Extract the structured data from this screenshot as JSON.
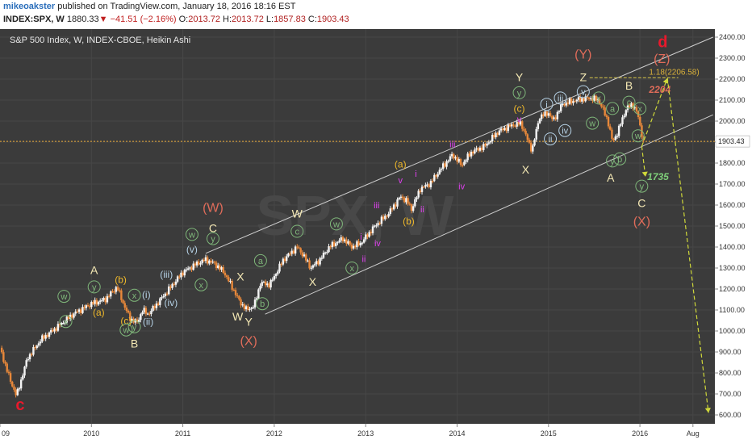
{
  "header": {
    "author": "mikeoakster",
    "published": "published on TradingView.com, January 18, 2016 18:16 EST",
    "symbol": "INDEX:SPX, W",
    "last": "1880.33",
    "change": "−41.51 (−2.16%)",
    "o_label": "O:",
    "o_value": "2013.72",
    "h_label": "H:",
    "h_value": "2013.72",
    "l_label": "L:",
    "l_value": "1857.83",
    "c_label": "C:",
    "c_value": "1903.43"
  },
  "chart_data": {
    "type": "candlestick",
    "title": "S&P 500 Index, W, INDEX-CBOE, Heikin Ashi",
    "watermark": "SPX, W",
    "price_axis": {
      "min": 600,
      "max": 2400,
      "ticks": [
        "2400.00",
        "2300.00",
        "2200.00",
        "2100.00",
        "2000.00",
        "1900.00",
        "1800.00",
        "1700.00",
        "1600.00",
        "1500.00",
        "1400.00",
        "1300.00",
        "1200.00",
        "1100.00",
        "1000.00",
        "900.00",
        "800.00",
        "700.00",
        "600.00"
      ]
    },
    "time_axis": {
      "ticks": [
        "09",
        "2010",
        "2011",
        "2012",
        "2013",
        "2014",
        "2015",
        "2016",
        "Aug"
      ]
    },
    "last_price_label": "1903.43",
    "price_path": [
      [
        2009.0,
        920
      ],
      [
        2009.1,
        780
      ],
      [
        2009.18,
        690
      ],
      [
        2009.3,
        870
      ],
      [
        2009.45,
        960
      ],
      [
        2009.6,
        1010
      ],
      [
        2009.8,
        1080
      ],
      [
        2010.0,
        1130
      ],
      [
        2010.15,
        1150
      ],
      [
        2010.28,
        1210
      ],
      [
        2010.35,
        1130
      ],
      [
        2010.42,
        1060
      ],
      [
        2010.5,
        1040
      ],
      [
        2010.56,
        1100
      ],
      [
        2010.62,
        1080
      ],
      [
        2010.7,
        1120
      ],
      [
        2010.85,
        1200
      ],
      [
        2011.0,
        1280
      ],
      [
        2011.15,
        1320
      ],
      [
        2011.25,
        1340
      ],
      [
        2011.35,
        1320
      ],
      [
        2011.45,
        1280
      ],
      [
        2011.55,
        1200
      ],
      [
        2011.62,
        1140
      ],
      [
        2011.7,
        1100
      ],
      [
        2011.78,
        1120
      ],
      [
        2011.85,
        1230
      ],
      [
        2011.95,
        1220
      ],
      [
        2012.1,
        1340
      ],
      [
        2012.25,
        1400
      ],
      [
        2012.32,
        1360
      ],
      [
        2012.4,
        1300
      ],
      [
        2012.5,
        1340
      ],
      [
        2012.6,
        1400
      ],
      [
        2012.75,
        1440
      ],
      [
        2012.85,
        1400
      ],
      [
        2012.95,
        1420
      ],
      [
        2013.1,
        1500
      ],
      [
        2013.25,
        1560
      ],
      [
        2013.38,
        1640
      ],
      [
        2013.45,
        1620
      ],
      [
        2013.5,
        1580
      ],
      [
        2013.6,
        1680
      ],
      [
        2013.7,
        1700
      ],
      [
        2013.8,
        1760
      ],
      [
        2013.95,
        1840
      ],
      [
        2014.05,
        1790
      ],
      [
        2014.15,
        1850
      ],
      [
        2014.3,
        1880
      ],
      [
        2014.45,
        1950
      ],
      [
        2014.6,
        1980
      ],
      [
        2014.7,
        1990
      ],
      [
        2014.78,
        1900
      ],
      [
        2014.82,
        1860
      ],
      [
        2014.9,
        2020
      ],
      [
        2015.0,
        2040
      ],
      [
        2015.05,
        2000
      ],
      [
        2015.15,
        2080
      ],
      [
        2015.3,
        2100
      ],
      [
        2015.45,
        2110
      ],
      [
        2015.55,
        2100
      ],
      [
        2015.65,
        2000
      ],
      [
        2015.7,
        1900
      ],
      [
        2015.75,
        1940
      ],
      [
        2015.85,
        2060
      ],
      [
        2015.92,
        2080
      ],
      [
        2015.97,
        2040
      ],
      [
        2016.04,
        1900
      ]
    ],
    "channel": [
      {
        "name": "upper",
        "points": [
          [
            2011.25,
            1370
          ],
          [
            2016.8,
            2400
          ]
        ]
      },
      {
        "name": "lower",
        "points": [
          [
            2011.9,
            1080
          ],
          [
            2016.8,
            2030
          ]
        ]
      }
    ],
    "projections": [
      {
        "points": [
          [
            2016.02,
            1880
          ],
          [
            2016.3,
            2204
          ]
        ]
      },
      {
        "points": [
          [
            2016.02,
            1880
          ],
          [
            2016.06,
            1735
          ]
        ]
      },
      {
        "points": [
          [
            2016.3,
            2206
          ],
          [
            2016.75,
            610
          ]
        ]
      }
    ],
    "fib_level": {
      "label": "1.18(2206.58)",
      "value": 2206.58
    },
    "targets": [
      {
        "label": "2204",
        "value": 2204
      },
      {
        "label": "1735",
        "value": 1735
      }
    ],
    "labels": [
      {
        "text": "c",
        "t": 2009.22,
        "p": 650,
        "color": "#e8192c",
        "size": 20,
        "bold": true
      },
      {
        "text": "w",
        "t": 2009.7,
        "p": 1165,
        "color": "#7fb77a",
        "size": 11,
        "circle": true
      },
      {
        "text": "x",
        "t": 2009.72,
        "p": 1045,
        "color": "#7fb77a",
        "size": 11,
        "circle": true
      },
      {
        "text": "A",
        "t": 2010.03,
        "p": 1290,
        "color": "#f3e7b3",
        "size": 14
      },
      {
        "text": "y",
        "t": 2010.03,
        "p": 1210,
        "color": "#7fb77a",
        "size": 11,
        "circle": true
      },
      {
        "text": "(a)",
        "t": 2010.08,
        "p": 1090,
        "color": "#f0b92a",
        "size": 12
      },
      {
        "text": "(b)",
        "t": 2010.32,
        "p": 1245,
        "color": "#f0b92a",
        "size": 12
      },
      {
        "text": "(c)",
        "t": 2010.38,
        "p": 1050,
        "color": "#f0b92a",
        "size": 12
      },
      {
        "text": "w",
        "t": 2010.38,
        "p": 1005,
        "color": "#7fb77a",
        "size": 11,
        "circle": true
      },
      {
        "text": "x",
        "t": 2010.47,
        "p": 1170,
        "color": "#7fb77a",
        "size": 11,
        "circle": true
      },
      {
        "text": "y",
        "t": 2010.47,
        "p": 1020,
        "color": "#7fb77a",
        "size": 11,
        "circle": true
      },
      {
        "text": "B",
        "t": 2010.47,
        "p": 940,
        "color": "#f3e7b3",
        "size": 14
      },
      {
        "text": "(i)",
        "t": 2010.6,
        "p": 1175,
        "color": "#b6d2e6",
        "size": 12
      },
      {
        "text": "(ii)",
        "t": 2010.62,
        "p": 1045,
        "color": "#b6d2e6",
        "size": 12
      },
      {
        "text": "(iii)",
        "t": 2010.82,
        "p": 1270,
        "color": "#b6d2e6",
        "size": 12
      },
      {
        "text": "(iv)",
        "t": 2010.87,
        "p": 1135,
        "color": "#b6d2e6",
        "size": 12
      },
      {
        "text": "(v)",
        "t": 2011.1,
        "p": 1390,
        "color": "#b6d2e6",
        "size": 12
      },
      {
        "text": "w",
        "t": 2011.1,
        "p": 1460,
        "color": "#7fb77a",
        "size": 11,
        "circle": true
      },
      {
        "text": "x",
        "t": 2011.2,
        "p": 1220,
        "color": "#7fb77a",
        "size": 11,
        "circle": true
      },
      {
        "text": "(W)",
        "t": 2011.33,
        "p": 1590,
        "color": "#e06c5a",
        "size": 16
      },
      {
        "text": "C",
        "t": 2011.33,
        "p": 1490,
        "color": "#f3e7b3",
        "size": 14
      },
      {
        "text": "y",
        "t": 2011.33,
        "p": 1440,
        "color": "#7fb77a",
        "size": 11,
        "circle": true
      },
      {
        "text": "X",
        "t": 2011.63,
        "p": 1260,
        "color": "#f3e7b3",
        "size": 14
      },
      {
        "text": "W",
        "t": 2011.6,
        "p": 1070,
        "color": "#f3e7b3",
        "size": 14
      },
      {
        "text": "Y",
        "t": 2011.72,
        "p": 1045,
        "color": "#f3e7b3",
        "size": 14
      },
      {
        "text": "(X)",
        "t": 2011.72,
        "p": 955,
        "color": "#e06c5a",
        "size": 16
      },
      {
        "text": "a",
        "t": 2011.85,
        "p": 1335,
        "color": "#7fb77a",
        "size": 11,
        "circle": true
      },
      {
        "text": "b",
        "t": 2011.87,
        "p": 1130,
        "color": "#7fb77a",
        "size": 11,
        "circle": true
      },
      {
        "text": "c",
        "t": 2012.25,
        "p": 1475,
        "color": "#7fb77a",
        "size": 11,
        "circle": true
      },
      {
        "text": "W",
        "t": 2012.25,
        "p": 1560,
        "color": "#f3e7b3",
        "size": 14
      },
      {
        "text": "X",
        "t": 2012.42,
        "p": 1235,
        "color": "#f3e7b3",
        "size": 14
      },
      {
        "text": "w",
        "t": 2012.68,
        "p": 1510,
        "color": "#7fb77a",
        "size": 11,
        "circle": true
      },
      {
        "text": "x",
        "t": 2012.85,
        "p": 1300,
        "color": "#7fb77a",
        "size": 11,
        "circle": true
      },
      {
        "text": "i",
        "t": 2012.95,
        "p": 1450,
        "color": "#e040f0",
        "size": 11
      },
      {
        "text": "ii",
        "t": 2012.98,
        "p": 1345,
        "color": "#e040f0",
        "size": 11
      },
      {
        "text": "iii",
        "t": 2013.12,
        "p": 1600,
        "color": "#e040f0",
        "size": 11
      },
      {
        "text": "iv",
        "t": 2013.13,
        "p": 1420,
        "color": "#e040f0",
        "size": 11
      },
      {
        "text": "(a)",
        "t": 2013.38,
        "p": 1795,
        "color": "#f0b92a",
        "size": 12
      },
      {
        "text": "v",
        "t": 2013.38,
        "p": 1720,
        "color": "#e040f0",
        "size": 11
      },
      {
        "text": "(b)",
        "t": 2013.47,
        "p": 1525,
        "color": "#f0b92a",
        "size": 12
      },
      {
        "text": "i",
        "t": 2013.55,
        "p": 1750,
        "color": "#e040f0",
        "size": 11
      },
      {
        "text": "ii",
        "t": 2013.62,
        "p": 1580,
        "color": "#e040f0",
        "size": 11
      },
      {
        "text": "iii",
        "t": 2013.95,
        "p": 1890,
        "color": "#e040f0",
        "size": 11
      },
      {
        "text": "iv",
        "t": 2014.05,
        "p": 1690,
        "color": "#e040f0",
        "size": 11
      },
      {
        "text": "Y",
        "t": 2014.68,
        "p": 2210,
        "color": "#f3e7b3",
        "size": 14
      },
      {
        "text": "y",
        "t": 2014.68,
        "p": 2135,
        "color": "#7fb77a",
        "size": 11,
        "circle": true
      },
      {
        "text": "(c)",
        "t": 2014.68,
        "p": 2060,
        "color": "#f0b92a",
        "size": 12
      },
      {
        "text": "v",
        "t": 2014.68,
        "p": 2010,
        "color": "#e040f0",
        "size": 11
      },
      {
        "text": "X",
        "t": 2014.75,
        "p": 1770,
        "color": "#f3e7b3",
        "size": 14
      },
      {
        "text": "i",
        "t": 2014.98,
        "p": 2080,
        "color": "#b6d2e6",
        "size": 11,
        "circle": true
      },
      {
        "text": "ii",
        "t": 2015.02,
        "p": 1915,
        "color": "#b6d2e6",
        "size": 11,
        "circle": true
      },
      {
        "text": "iii",
        "t": 2015.13,
        "p": 2110,
        "color": "#b6d2e6",
        "size": 11,
        "circle": true
      },
      {
        "text": "iv",
        "t": 2015.18,
        "p": 1955,
        "color": "#b6d2e6",
        "size": 11,
        "circle": true
      },
      {
        "text": "(Y)",
        "t": 2015.38,
        "p": 2320,
        "color": "#e06c5a",
        "size": 16
      },
      {
        "text": "Z",
        "t": 2015.38,
        "p": 2210,
        "color": "#f3e7b3",
        "size": 14
      },
      {
        "text": "v",
        "t": 2015.38,
        "p": 2140,
        "color": "#b6d2e6",
        "size": 11,
        "circle": true
      },
      {
        "text": "x",
        "t": 2015.55,
        "p": 2110,
        "color": "#7fb77a",
        "size": 11,
        "circle": true
      },
      {
        "text": "a",
        "t": 2015.7,
        "p": 2060,
        "color": "#7fb77a",
        "size": 11,
        "circle": true
      },
      {
        "text": "w",
        "t": 2015.48,
        "p": 1990,
        "color": "#7fb77a",
        "size": 11,
        "circle": true
      },
      {
        "text": "y",
        "t": 2015.7,
        "p": 1810,
        "color": "#7fb77a",
        "size": 11,
        "circle": true
      },
      {
        "text": "b",
        "t": 2015.78,
        "p": 1820,
        "color": "#7fb77a",
        "size": 11,
        "circle": true
      },
      {
        "text": "A",
        "t": 2015.68,
        "p": 1730,
        "color": "#f3e7b3",
        "size": 14
      },
      {
        "text": "B",
        "t": 2015.88,
        "p": 2170,
        "color": "#f3e7b3",
        "size": 14
      },
      {
        "text": "c",
        "t": 2015.88,
        "p": 2090,
        "color": "#7fb77a",
        "size": 11,
        "circle": true
      },
      {
        "text": "x",
        "t": 2016.0,
        "p": 2060,
        "color": "#7fb77a",
        "size": 11,
        "circle": true
      },
      {
        "text": "w",
        "t": 2015.98,
        "p": 1930,
        "color": "#7fb77a",
        "size": 11,
        "circle": true
      },
      {
        "text": "y",
        "t": 2016.02,
        "p": 1690,
        "color": "#7fb77a",
        "size": 11,
        "circle": true
      },
      {
        "text": "C",
        "t": 2016.02,
        "p": 1610,
        "color": "#f3e7b3",
        "size": 14
      },
      {
        "text": "(X)",
        "t": 2016.02,
        "p": 1525,
        "color": "#e06c5a",
        "size": 16
      },
      {
        "text": "(Z)",
        "t": 2016.24,
        "p": 2300,
        "color": "#e06c5a",
        "size": 16
      },
      {
        "text": "d",
        "t": 2016.25,
        "p": 2380,
        "color": "#e8192c",
        "size": 20,
        "bold": true
      }
    ]
  }
}
